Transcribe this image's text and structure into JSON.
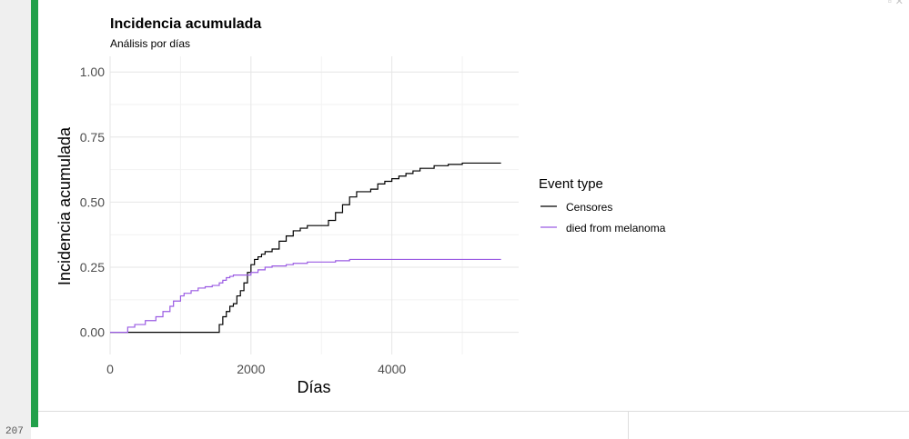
{
  "editor": {
    "line_number": "207"
  },
  "window_controls": {
    "expand_glyph": "▫",
    "close_glyph": "✕"
  },
  "chart_data": {
    "type": "line",
    "title": "Incidencia acumulada",
    "subtitle": "Análisis por días",
    "xlabel": "Días",
    "ylabel": "Incidencia acumulada",
    "xlim": [
      0,
      5800
    ],
    "ylim": [
      0,
      1
    ],
    "x_ticks": [
      0,
      2000,
      4000
    ],
    "x_tick_labels": [
      "0",
      "2000",
      "4000"
    ],
    "y_ticks": [
      0,
      0.25,
      0.5,
      0.75,
      1
    ],
    "y_tick_labels": [
      "0.00",
      "0.25",
      "0.50",
      "0.75",
      "1.00"
    ],
    "grid": true,
    "step": true,
    "legend": {
      "title": "Event type",
      "position": "right"
    },
    "series": [
      {
        "name": "Censores",
        "color": "#000000",
        "x": [
          0,
          1500,
          1550,
          1600,
          1650,
          1700,
          1750,
          1800,
          1850,
          1900,
          1950,
          2000,
          2050,
          2100,
          2150,
          2200,
          2300,
          2400,
          2500,
          2600,
          2700,
          2800,
          3000,
          3100,
          3200,
          3300,
          3400,
          3500,
          3600,
          3700,
          3800,
          3900,
          4000,
          4100,
          4200,
          4300,
          4400,
          4500,
          4600,
          4700,
          4800,
          5000,
          5200,
          5400,
          5550
        ],
        "y": [
          0.0,
          0.0,
          0.03,
          0.06,
          0.08,
          0.1,
          0.11,
          0.14,
          0.16,
          0.19,
          0.23,
          0.26,
          0.28,
          0.29,
          0.3,
          0.31,
          0.32,
          0.35,
          0.37,
          0.39,
          0.4,
          0.41,
          0.41,
          0.43,
          0.46,
          0.49,
          0.52,
          0.54,
          0.54,
          0.55,
          0.57,
          0.58,
          0.59,
          0.6,
          0.61,
          0.62,
          0.63,
          0.63,
          0.64,
          0.64,
          0.645,
          0.65,
          0.65,
          0.65,
          0.65
        ]
      },
      {
        "name": "died from melanoma",
        "color": "#9b5ce3",
        "x": [
          0,
          150,
          250,
          350,
          500,
          650,
          750,
          850,
          900,
          1000,
          1050,
          1150,
          1250,
          1350,
          1450,
          1550,
          1600,
          1650,
          1700,
          1750,
          1800,
          2000,
          2100,
          2200,
          2300,
          2500,
          2600,
          2800,
          3000,
          3200,
          3400,
          3600,
          4000,
          4500,
          5000,
          5550
        ],
        "y": [
          0.0,
          0.0,
          0.02,
          0.03,
          0.045,
          0.06,
          0.08,
          0.1,
          0.12,
          0.14,
          0.15,
          0.16,
          0.17,
          0.175,
          0.18,
          0.19,
          0.2,
          0.21,
          0.215,
          0.22,
          0.22,
          0.23,
          0.24,
          0.25,
          0.255,
          0.26,
          0.265,
          0.27,
          0.27,
          0.275,
          0.28,
          0.28,
          0.28,
          0.28,
          0.28,
          0.28
        ]
      }
    ]
  }
}
